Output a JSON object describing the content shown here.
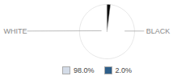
{
  "chart_data": {
    "type": "pie",
    "categories": [
      "WHITE",
      "BLACK"
    ],
    "values": [
      98.0,
      2.0
    ],
    "value_labels": [
      "98.0%",
      "2.0%"
    ],
    "colors": [
      "#d4dce8",
      "#2e5f8a"
    ],
    "legend": "bottom"
  }
}
